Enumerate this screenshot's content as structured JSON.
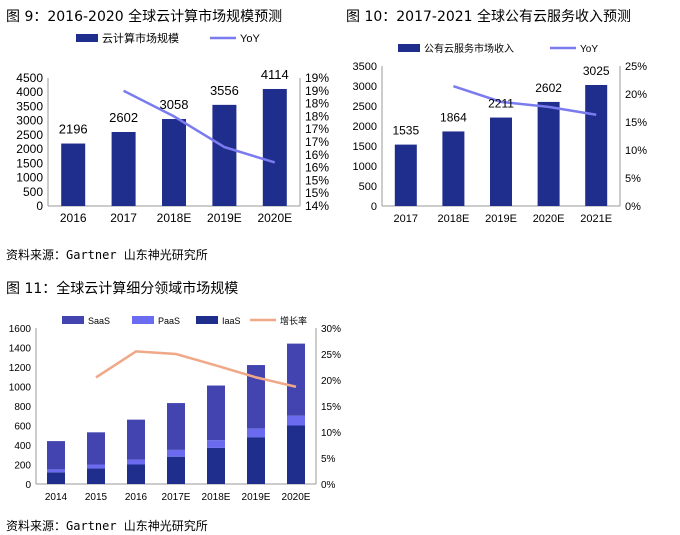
{
  "figures": [
    {
      "title": "图 9：2016-2020 全球云计算市场规模预测",
      "source": "",
      "chart_data": {
        "type": "bar",
        "categories": [
          "2016",
          "2017",
          "2018E",
          "2019E",
          "2020E"
        ],
        "series": [
          {
            "name": "云计算市场规模",
            "type": "bar",
            "axis": "left",
            "color": "#1f2d8c",
            "values": [
              2196,
              2602,
              3058,
              3556,
              4114
            ]
          },
          {
            "name": "YoY",
            "type": "line",
            "axis": "right",
            "color": "#7b7bf0",
            "values": [
              null,
              18.5,
              17.5,
              16.3,
              15.7
            ]
          }
        ],
        "ylim": [
          0,
          4500
        ],
        "yticks": [
          "0",
          "500",
          "1000",
          "1500",
          "2000",
          "2500",
          "3000",
          "3500",
          "4000",
          "4500"
        ],
        "y2lim": [
          14,
          19
        ],
        "y2ticks": [
          "14%",
          "15%",
          "15%",
          "16%",
          "16%",
          "17%",
          "17%",
          "18%",
          "18%",
          "19%",
          "19%"
        ],
        "data_labels": [
          "2196",
          "2602",
          "3058",
          "3556",
          "4114"
        ],
        "legend_position": "top",
        "grid": false
      }
    },
    {
      "title": "图 10：2017-2021 全球公有云服务收入预测",
      "source": "",
      "chart_data": {
        "type": "bar",
        "categories": [
          "2017",
          "2018E",
          "2019E",
          "2020E",
          "2021E"
        ],
        "series": [
          {
            "name": "公有云服务市场收入",
            "type": "bar",
            "axis": "left",
            "color": "#1f2d8c",
            "values": [
              1535,
              1864,
              2211,
              2602,
              3025
            ]
          },
          {
            "name": "YoY",
            "type": "line",
            "axis": "right",
            "color": "#7b7bf0",
            "values": [
              null,
              21.4,
              18.6,
              17.7,
              16.3
            ]
          }
        ],
        "ylim": [
          0,
          3500
        ],
        "yticks": [
          "0",
          "500",
          "1000",
          "1500",
          "2000",
          "2500",
          "3000",
          "3500"
        ],
        "y2lim": [
          0,
          25
        ],
        "y2ticks": [
          "0%",
          "5%",
          "10%",
          "15%",
          "20%",
          "25%"
        ],
        "data_labels": [
          "1535",
          "1864",
          "2211",
          "2602",
          "3025"
        ],
        "legend_position": "top",
        "grid": false
      }
    },
    {
      "title": "图 11：全球云计算细分领域市场规模",
      "source": "资料来源：Gartner  山东神光研究所",
      "chart_data": {
        "type": "bar",
        "stacked": true,
        "categories": [
          "2014",
          "2015",
          "2016",
          "2017E",
          "2018E",
          "2019E",
          "2020E"
        ],
        "series": [
          {
            "name": "IaaS",
            "type": "bar",
            "axis": "left",
            "color": "#1f2d8c",
            "values": [
              120,
              160,
              200,
              280,
              370,
              480,
              600
            ]
          },
          {
            "name": "PaaS",
            "type": "bar",
            "axis": "left",
            "color": "#6b6bf0",
            "values": [
              30,
              40,
              50,
              70,
              80,
              90,
              100
            ]
          },
          {
            "name": "SaaS",
            "type": "bar",
            "axis": "left",
            "color": "#4444b0",
            "values": [
              290,
              330,
              410,
              480,
              560,
              650,
              740
            ]
          },
          {
            "name": "增长率",
            "type": "line",
            "axis": "right",
            "color": "#f0a888",
            "values": [
              null,
              20.5,
              25.5,
              25,
              22.8,
              20.5,
              18.7
            ]
          }
        ],
        "ylim": [
          0,
          1600
        ],
        "yticks": [
          "0",
          "200",
          "400",
          "600",
          "800",
          "1000",
          "1200",
          "1400",
          "1600"
        ],
        "y2lim": [
          0,
          30
        ],
        "y2ticks": [
          "0%",
          "5%",
          "10%",
          "15%",
          "20%",
          "25%",
          "30%"
        ],
        "legend_position": "top",
        "grid": false
      }
    }
  ],
  "shared_source": "资料来源：Gartner  山东神光研究所"
}
